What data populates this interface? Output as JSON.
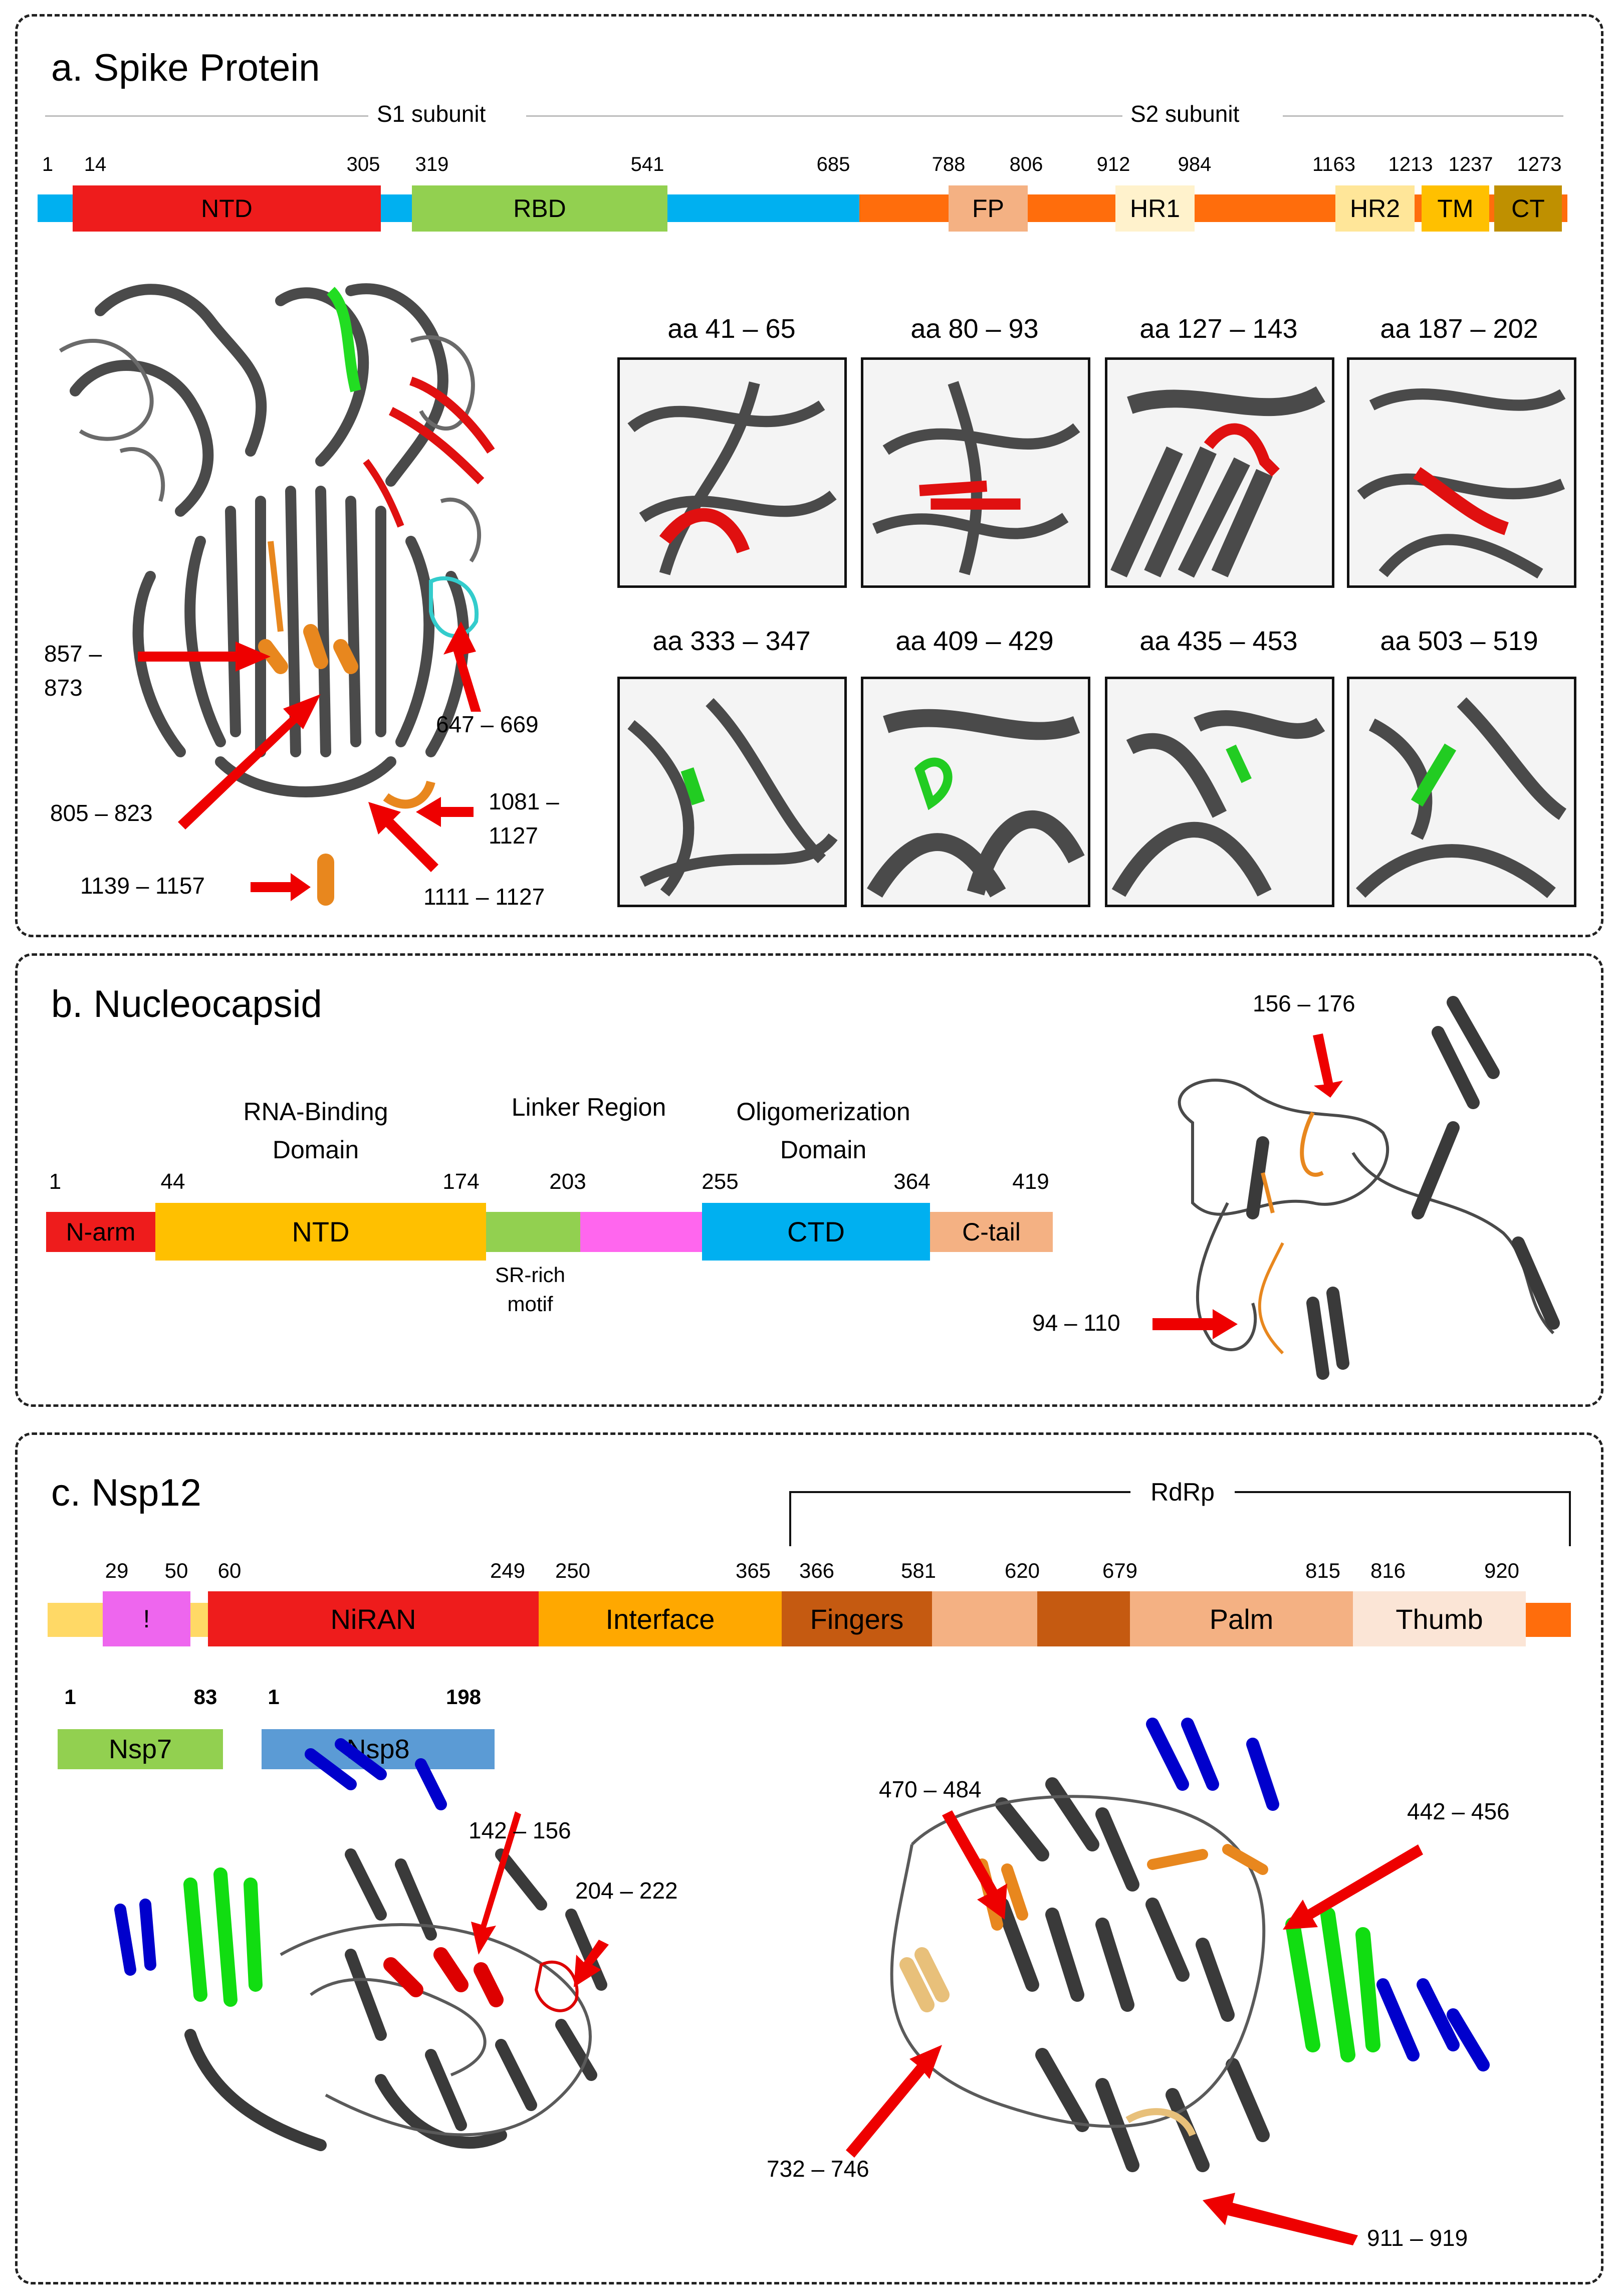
{
  "panels": {
    "a": {
      "title": "a. Spike Protein",
      "s1": "S1 subunit",
      "s2": "S2 subunit",
      "positions": [
        "1",
        "14",
        "305",
        "319",
        "541",
        "685",
        "788",
        "806",
        "912",
        "984",
        "1163",
        "1213",
        "1237",
        "1273"
      ],
      "domains": [
        {
          "label": "NTD",
          "color": "#ee1c1c"
        },
        {
          "label": "RBD",
          "color": "#92d050"
        },
        {
          "label": "FP",
          "color": "#f4b183"
        },
        {
          "label": "HR1",
          "color": "#fff2cc"
        },
        {
          "label": "HR2",
          "color": "#ffe699"
        },
        {
          "label": "TM",
          "color": "#ffc000"
        },
        {
          "label": "CT",
          "color": "#bf9000"
        }
      ],
      "s1_color": "#00b0f0",
      "s2_color": "#ff6d0c",
      "structure_labels": [
        "857 –\n873",
        "647 – 669",
        "805 – 823",
        "1081 –\n1127",
        "1139 – 1157",
        "1111 – 1127"
      ],
      "thumbnails": [
        {
          "title": "aa 41 – 65",
          "highlight": "#e01010"
        },
        {
          "title": "aa 80 – 93",
          "highlight": "#e01010"
        },
        {
          "title": "aa 127 – 143",
          "highlight": "#e01010"
        },
        {
          "title": "aa 187 – 202",
          "highlight": "#e01010"
        },
        {
          "title": "aa 333 – 347",
          "highlight": "#22cc22"
        },
        {
          "title": "aa 409 – 429",
          "highlight": "#22cc22"
        },
        {
          "title": "aa 435 – 453",
          "highlight": "#22cc22"
        },
        {
          "title": "aa 503 – 519",
          "highlight": "#22cc22"
        }
      ]
    },
    "b": {
      "title": "b. Nucleocapsid",
      "headers": [
        "RNA-Binding\nDomain",
        "Linker Region",
        "Oligomerization\nDomain"
      ],
      "positions": [
        "1",
        "44",
        "174",
        "203",
        "255",
        "364",
        "419"
      ],
      "domains": [
        {
          "label": "N-arm",
          "color": "#ee1c1c"
        },
        {
          "label": "NTD",
          "color": "#ffc000"
        },
        {
          "label": "",
          "color": "#92d050"
        },
        {
          "label": "",
          "color": "#ff66ee"
        },
        {
          "label": "CTD",
          "color": "#00b0f0"
        },
        {
          "label": "C-tail",
          "color": "#f4b183"
        }
      ],
      "sr_motif": "SR-rich\nmotif",
      "structure_labels": [
        "156 – 176",
        "94 – 110"
      ]
    },
    "c": {
      "title": "c. Nsp12",
      "rdrp": "RdRp",
      "positions": [
        "29",
        "50",
        "60",
        "249",
        "250",
        "365",
        "366",
        "581",
        "620",
        "679",
        "815",
        "816",
        "920"
      ],
      "domains": [
        {
          "label": "!",
          "color": "#ee66ee"
        },
        {
          "label": "NiRAN",
          "color": "#ee1c1c"
        },
        {
          "label": "Interface",
          "color": "#ffa800"
        },
        {
          "label": "Fingers",
          "color": "#c55a11"
        },
        {
          "label": "Palm",
          "color": "#f4b183"
        },
        {
          "label": "Thumb",
          "color": "#fbe5d6"
        }
      ],
      "nsp7": {
        "label": "Nsp7",
        "start": "1",
        "end": "83",
        "color": "#92d050"
      },
      "nsp8": {
        "label": "Nsp8",
        "start": "1",
        "end": "198",
        "color": "#5b9bd5"
      },
      "structure_labels": [
        "142 – 156",
        "204 – 222",
        "470 – 484",
        "442 – 456",
        "732 – 746",
        "911 – 919"
      ]
    }
  }
}
